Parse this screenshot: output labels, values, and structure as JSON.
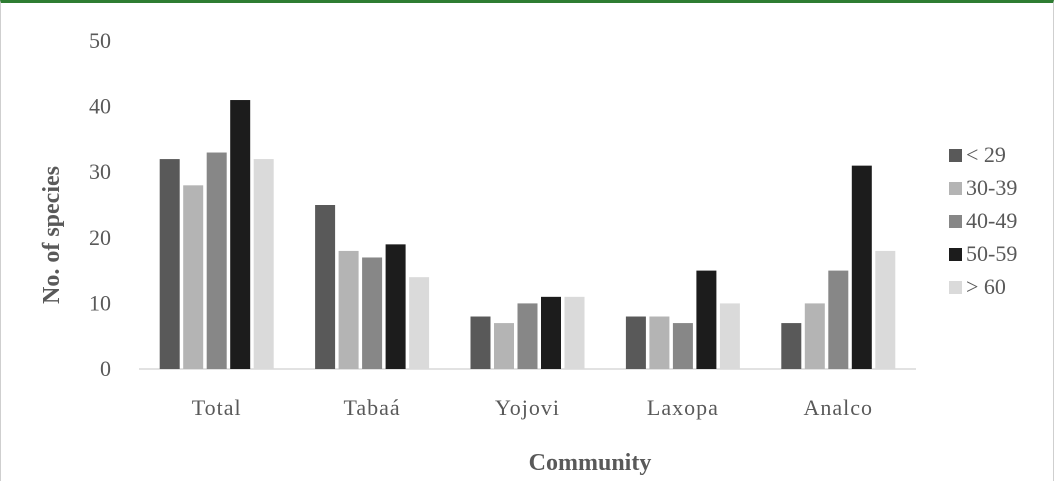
{
  "chart_data": {
    "type": "bar",
    "title": "",
    "xlabel": "Community",
    "ylabel": "No. of species",
    "ylim": [
      0,
      50
    ],
    "yticks": [
      0,
      10,
      20,
      30,
      40,
      50
    ],
    "grid": false,
    "legend_position": "right",
    "categories": [
      "Total",
      "Tabaá",
      "Yojovi",
      "Laxopa",
      "Analco"
    ],
    "series": [
      {
        "name": "< 29",
        "color": "#595959",
        "values": [
          32,
          25,
          8,
          8,
          7
        ]
      },
      {
        "name": "30-39",
        "color": "#b4b4b4",
        "values": [
          28,
          18,
          7,
          8,
          10
        ]
      },
      {
        "name": "40-49",
        "color": "#878787",
        "values": [
          33,
          17,
          10,
          7,
          15
        ]
      },
      {
        "name": "50-59",
        "color": "#1c1c1c",
        "values": [
          41,
          19,
          11,
          15,
          31
        ]
      },
      {
        "name": "> 60",
        "color": "#dadada",
        "values": [
          32,
          14,
          11,
          10,
          18
        ]
      }
    ]
  }
}
